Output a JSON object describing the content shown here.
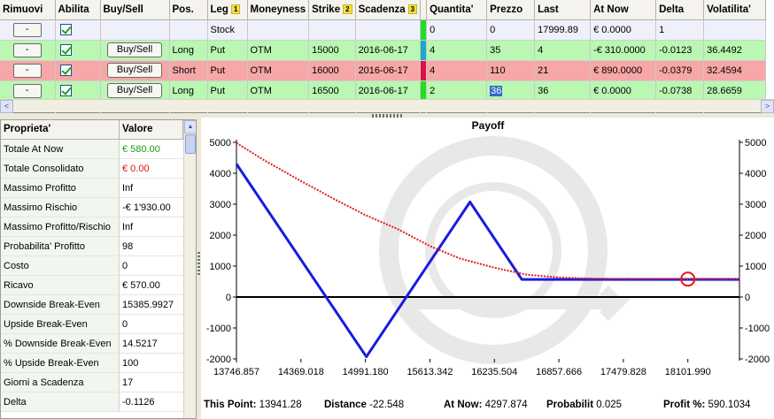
{
  "grid": {
    "columns": [
      "Rimuovi",
      "Abilita",
      "Buy/Sell",
      "Pos.",
      "Leg",
      "Moneyness",
      "Strike",
      "Scadenza",
      "",
      "Quantita'",
      "Prezzo",
      "Last",
      "At Now",
      "Delta",
      "Volatilita'"
    ],
    "sort_badges": {
      "leg": "1",
      "strike": "2",
      "scadenza": "3"
    },
    "remove_label": "-",
    "buysell_label": "Buy/Sell",
    "rows": [
      {
        "type": "stock",
        "pos": "",
        "leg": "Stock",
        "moneyness": "",
        "strike": "",
        "scadenza": "",
        "sep_color": "#22dd22",
        "qty": "0",
        "prezzo": "0",
        "last": "17999.89",
        "atnow": "€ 0.0000",
        "delta": "1",
        "vol": "",
        "has_buysell": false
      },
      {
        "type": "long",
        "pos": "Long",
        "leg": "Put",
        "moneyness": "OTM",
        "strike": "15000",
        "scadenza": "2016-06-17",
        "sep_color": "#1aa9c9",
        "qty": "4",
        "prezzo": "35",
        "last": "4",
        "atnow": "-€ 310.0000",
        "delta": "-0.0123",
        "vol": "36.4492",
        "has_buysell": true
      },
      {
        "type": "short",
        "pos": "Short",
        "leg": "Put",
        "moneyness": "OTM",
        "strike": "16000",
        "scadenza": "2016-06-17",
        "sep_color": "#dd1144",
        "qty": "4",
        "prezzo": "110",
        "last": "21",
        "atnow": "€ 890.0000",
        "delta": "-0.0379",
        "vol": "32.4594",
        "has_buysell": true
      },
      {
        "type": "long",
        "pos": "Long",
        "leg": "Put",
        "moneyness": "OTM",
        "strike": "16500",
        "scadenza": "2016-06-17",
        "sep_color": "#22dd22",
        "qty": "2",
        "prezzo": "36",
        "last": "36",
        "atnow": "€ 0.0000",
        "delta": "-0.0738",
        "vol": "28.6659",
        "has_buysell": true,
        "selected_prezzo": true
      }
    ]
  },
  "scroll": {
    "left_arrow": "<",
    "right_arrow": ">",
    "up_arrow": "▲",
    "down_arrow": "▼"
  },
  "props": {
    "headers": [
      "Proprieta'",
      "Valore"
    ],
    "rows": [
      {
        "k": "Totale At Now",
        "v": "€ 580.00",
        "color": "#1a9a1a"
      },
      {
        "k": "Totale Consolidato",
        "v": "€ 0.00",
        "color": "#dd1111"
      },
      {
        "k": "Massimo Profitto",
        "v": "Inf"
      },
      {
        "k": "Massimo Rischio",
        "v": "-€ 1'930.00"
      },
      {
        "k": "Massimo Profitto/Rischio",
        "v": "Inf"
      },
      {
        "k": "Probabilita' Profitto",
        "v": "98"
      },
      {
        "k": "Costo",
        "v": "0"
      },
      {
        "k": "Ricavo",
        "v": "€ 570.00"
      },
      {
        "k": "Downside Break-Even",
        "v": "15385.9927"
      },
      {
        "k": "Upside Break-Even",
        "v": "0"
      },
      {
        "k": "% Downside Break-Even",
        "v": "14.5217"
      },
      {
        "k": "% Upside Break-Even",
        "v": "100"
      },
      {
        "k": "Giorni a Scadenza",
        "v": "17"
      },
      {
        "k": "Delta",
        "v": "-0.1126"
      }
    ]
  },
  "chart_data": {
    "type": "line",
    "title": "Payoff",
    "x_ticks": [
      "13746.857",
      "14369.018",
      "14991.180",
      "15613.342",
      "16235.504",
      "16857.666",
      "17479.828",
      "18101.990"
    ],
    "x_tick_values": [
      13746.857,
      14369.018,
      14991.18,
      15613.342,
      16235.504,
      16857.666,
      17479.828,
      18101.99
    ],
    "xlim": [
      13746.857,
      18600
    ],
    "ylim": [
      -2000,
      5000
    ],
    "y_ticks": [
      -2000,
      -1000,
      0,
      1000,
      2000,
      3000,
      4000,
      5000
    ],
    "series": [
      {
        "color": "#1a1ae0",
        "style": "solid",
        "points": [
          [
            13746.857,
            4300
          ],
          [
            15000,
            -1930
          ],
          [
            16000,
            3070
          ],
          [
            16500,
            570
          ],
          [
            18600,
            570
          ]
        ]
      },
      {
        "color": "#e01a1a",
        "style": "dotted",
        "points": [
          [
            13746.857,
            4980
          ],
          [
            14000,
            4450
          ],
          [
            14369,
            3750
          ],
          [
            14700,
            3150
          ],
          [
            14991,
            2650
          ],
          [
            15300,
            2200
          ],
          [
            15613,
            1650
          ],
          [
            15900,
            1250
          ],
          [
            16235,
            950
          ],
          [
            16550,
            720
          ],
          [
            16857,
            630
          ],
          [
            17200,
            590
          ],
          [
            17479,
            582
          ],
          [
            18101,
            580
          ],
          [
            18600,
            580
          ]
        ]
      }
    ],
    "marker": {
      "x": 18101.99,
      "y": 580,
      "color": "#e01a1a"
    },
    "grid": false,
    "watermark_color": "#e8e8e8"
  },
  "footer": {
    "this_point_label": "This Point:",
    "this_point_value": "13941.28",
    "distance_label": "Distance",
    "distance_value": "-22.548",
    "atnow_label": "At Now:",
    "atnow_value": "4297.874",
    "prob_label": "Probabilit",
    "prob_value": "0.025",
    "profit_label": "Profit %:",
    "profit_value": "590.1034"
  }
}
